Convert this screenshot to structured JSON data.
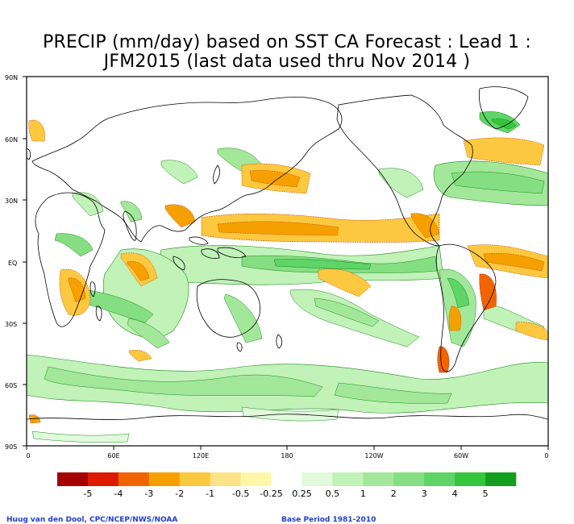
{
  "title": {
    "line1": "PRECIP (mm/day) based on SST CA Forecast : Lead 1 :",
    "line2": "JFM2015 (last data used thru Nov 2014 )"
  },
  "axes": {
    "lat_labels": [
      "90N",
      "60N",
      "30N",
      "EQ",
      "30S",
      "60S",
      "90S"
    ],
    "lon_labels": [
      "0",
      "60E",
      "120E",
      "180",
      "120W",
      "60W",
      "0"
    ]
  },
  "colorbar": {
    "tick_labels": [
      "-5",
      "-4",
      "-3",
      "-2",
      "-1",
      "-0.5",
      "-0.25",
      "0.25",
      "0.5",
      "1",
      "2",
      "3",
      "4",
      "5"
    ],
    "colors": [
      "#a50000",
      "#dc1a00",
      "#f26400",
      "#f6a000",
      "#fcc840",
      "#fde387",
      "#fef7a8",
      "#ffffff",
      "#e1fadc",
      "#c1f2b8",
      "#a3e89a",
      "#86de83",
      "#5fd467",
      "#34c63c",
      "#139e1e"
    ]
  },
  "footer": {
    "left": "Huug van den Dool, CPC/NCEP/NWS/NOAA",
    "right": "Base Period 1981-2010"
  }
}
